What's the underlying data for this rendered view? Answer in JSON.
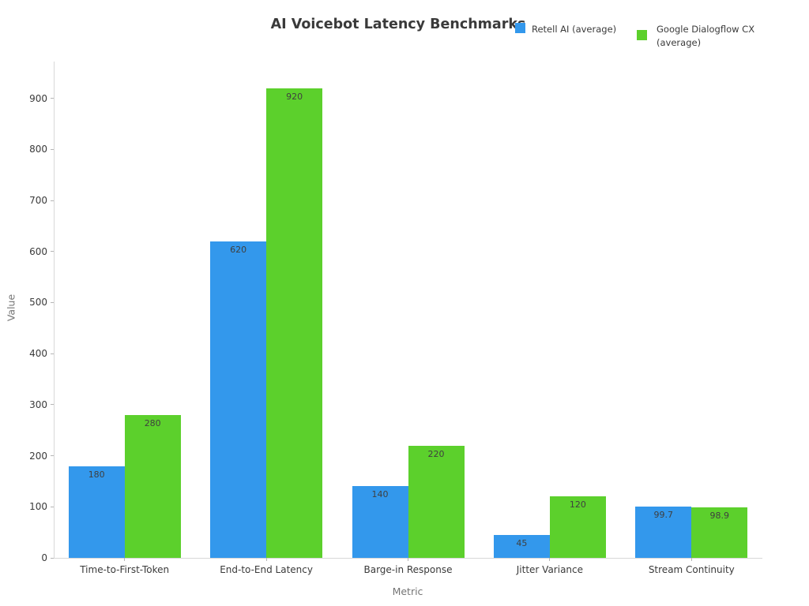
{
  "chart_data": {
    "type": "bar",
    "title": "AI Voicebot Latency Benchmarks",
    "xlabel": "Metric",
    "ylabel": "Value",
    "categories": [
      "Time-to-First-Token",
      "End-to-End Latency",
      "Barge-in Response",
      "Jitter Variance",
      "Stream Continuity"
    ],
    "series": [
      {
        "name": "Retell AI (average)",
        "legend_lines": [
          "Retell AI (average)"
        ],
        "color": "#3398EC",
        "values": [
          180,
          620,
          140,
          45,
          99.7
        ]
      },
      {
        "name": "Google Dialogflow CX (average)",
        "legend_lines": [
          "Google Dialogflow CX",
          "(average)"
        ],
        "color": "#5CD02C",
        "values": [
          280,
          920,
          220,
          120,
          98.9
        ]
      }
    ],
    "y_ticks": [
      0,
      100,
      200,
      300,
      400,
      500,
      600,
      700,
      800,
      900
    ],
    "ylim": [
      0,
      972
    ],
    "grid": "off",
    "legend_position": "top-right",
    "bar_value_labels": [
      "180",
      "620",
      "140",
      "45",
      "99.7",
      "280",
      "920",
      "220",
      "120",
      "98.9"
    ]
  }
}
